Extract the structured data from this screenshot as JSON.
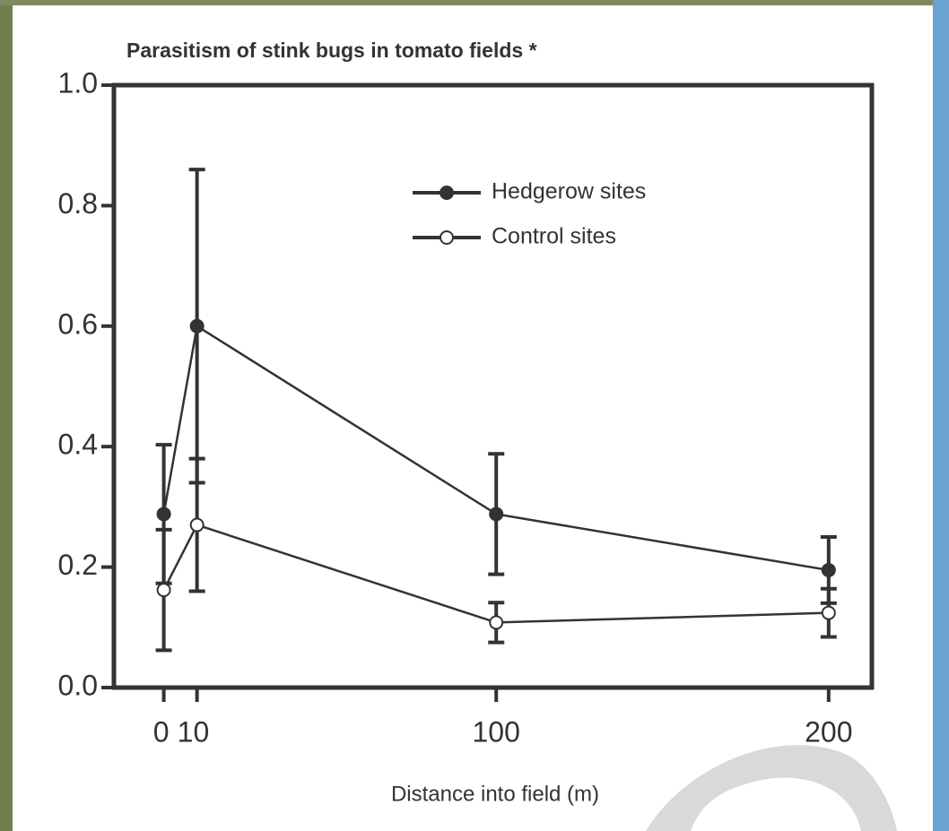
{
  "chart_data": {
    "type": "line",
    "title": "Parasitism of stink bugs in tomato fields  *",
    "x_label": "Distance into field (m)",
    "x": [
      0,
      10,
      100,
      200
    ],
    "series": [
      {
        "name": "Hedgerow sites",
        "color": "#333333",
        "marker_fill": "#333333",
        "values": [
          0.288,
          0.6,
          0.288,
          0.195
        ],
        "errors": [
          0.115,
          0.26,
          0.1,
          0.055
        ]
      },
      {
        "name": "Control sites",
        "color": "#333333",
        "marker_fill": "#ffffff",
        "values": [
          0.162,
          0.27,
          0.108,
          0.124
        ],
        "errors": [
          0.1,
          0.11,
          0.033,
          0.04
        ]
      }
    ],
    "xlim": [
      -15,
      213
    ],
    "xticks": [
      0,
      10,
      100,
      200
    ],
    "ylim": [
      0,
      1
    ],
    "yticks": [
      {
        "value": 0,
        "label": "0.0"
      },
      0.2,
      0.4,
      0.6,
      0.8,
      {
        "value": 1,
        "label": "1.0"
      }
    ],
    "grid": false,
    "legend": "upper center"
  }
}
